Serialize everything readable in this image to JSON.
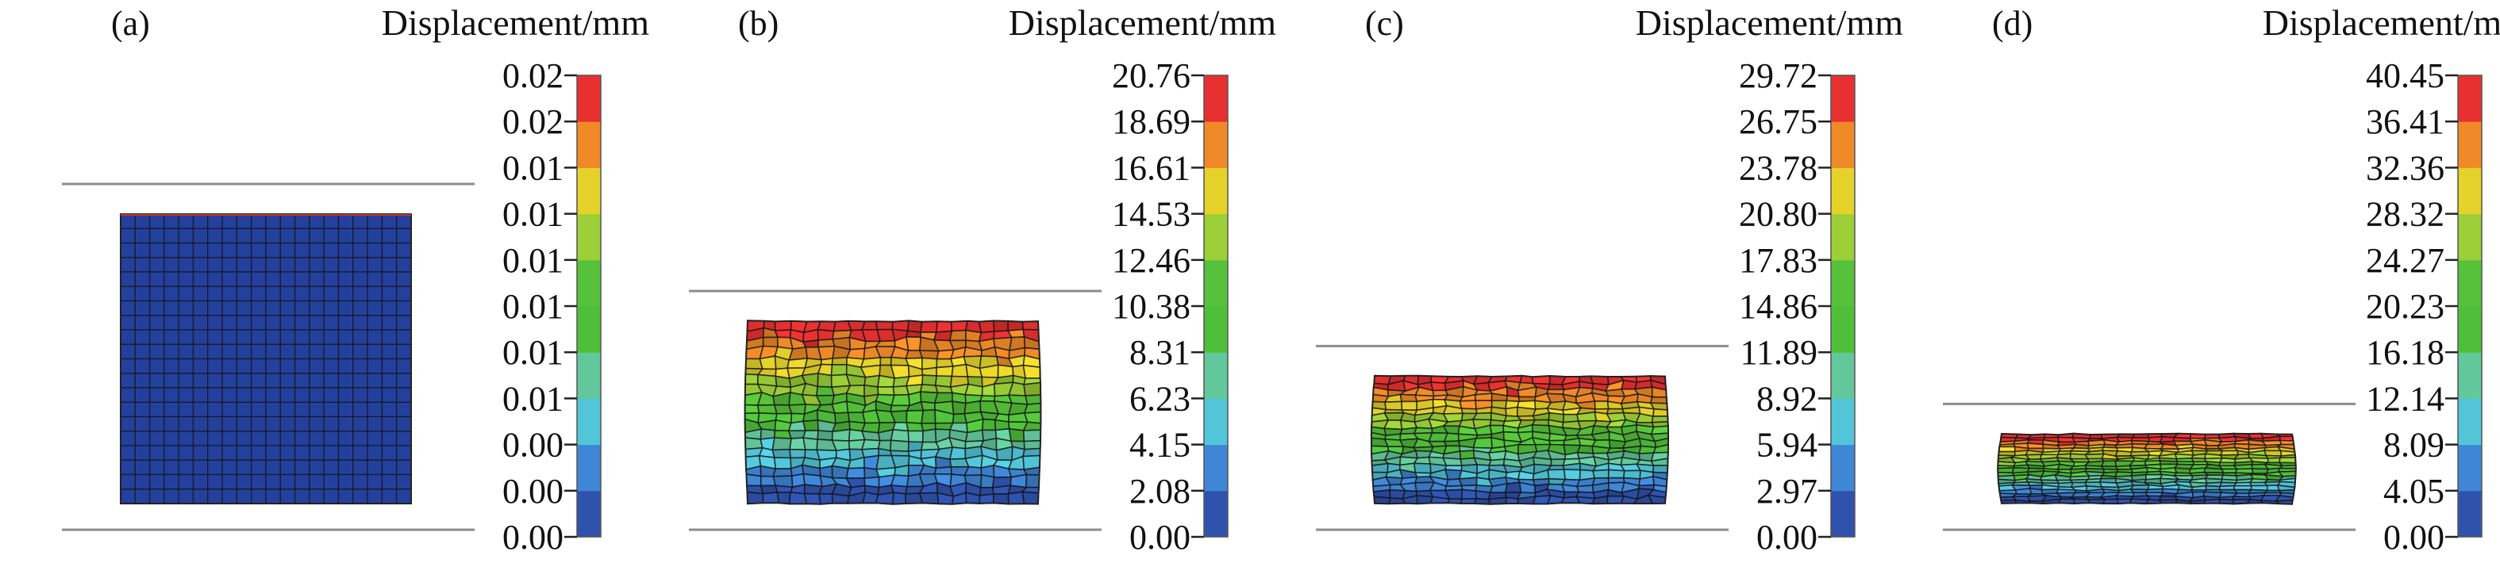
{
  "figure": {
    "panels": [
      {
        "id": "a",
        "label": "(a)",
        "colorbar_title": "Displacement/mm",
        "ticks": [
          "0.02",
          "0.02",
          "0.01",
          "0.01",
          "0.01",
          "0.01",
          "0.01",
          "0.01",
          "0.00",
          "0.00",
          "0.00"
        ],
        "compression": 0.0
      },
      {
        "id": "b",
        "label": "(b)",
        "colorbar_title": "Displacement/mm",
        "ticks": [
          "20.76",
          "18.69",
          "16.61",
          "14.53",
          "12.46",
          "10.38",
          "8.31",
          "6.23",
          "4.15",
          "2.08",
          "0.00"
        ],
        "compression": 0.37
      },
      {
        "id": "c",
        "label": "(c)",
        "colorbar_title": "Displacement/mm",
        "ticks": [
          "29.72",
          "26.75",
          "23.78",
          "20.80",
          "17.83",
          "14.86",
          "11.89",
          "8.92",
          "5.94",
          "2.97",
          "0.00"
        ],
        "compression": 0.56
      },
      {
        "id": "d",
        "label": "(d)",
        "colorbar_title": "Displacement/mm",
        "ticks": [
          "40.45",
          "36.41",
          "32.36",
          "28.32",
          "24.27",
          "20.23",
          "16.18",
          "12.14",
          "8.09",
          "4.05",
          "0.00"
        ],
        "compression": 0.76
      }
    ],
    "colors": {
      "colormap": [
        "#2f52ad",
        "#3f86d6",
        "#52c6d8",
        "#63c79c",
        "#4fbf3a",
        "#56c13a",
        "#9ccf38",
        "#e5d22a",
        "#f08a28",
        "#e83030"
      ],
      "plate": "#8c8c8c",
      "mesh_line": "#111111",
      "undeformed_fill": "#24409c"
    }
  }
}
